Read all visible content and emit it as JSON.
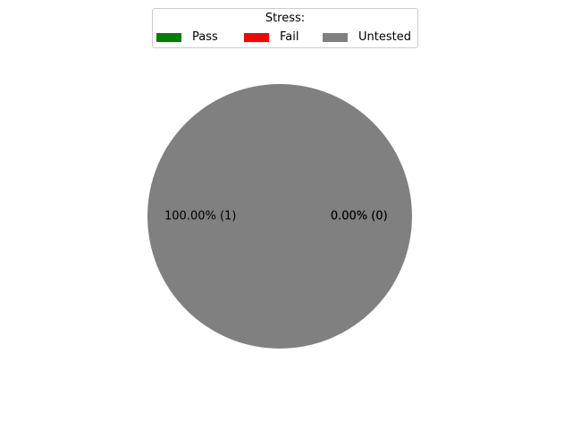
{
  "chart_data": {
    "type": "pie",
    "legend_title": "Stress:",
    "legend_placement": "top-center",
    "slices": [
      {
        "label": "Pass",
        "value": 0,
        "percent_label": "0.00%  (0)",
        "color": "#008000"
      },
      {
        "label": "Fail",
        "value": 0,
        "percent_label": "0.00%  (0)",
        "color": "#ff0000"
      },
      {
        "label": "Untested",
        "value": 1,
        "percent_label": "100.00%  (1)",
        "color": "#808080"
      }
    ]
  }
}
